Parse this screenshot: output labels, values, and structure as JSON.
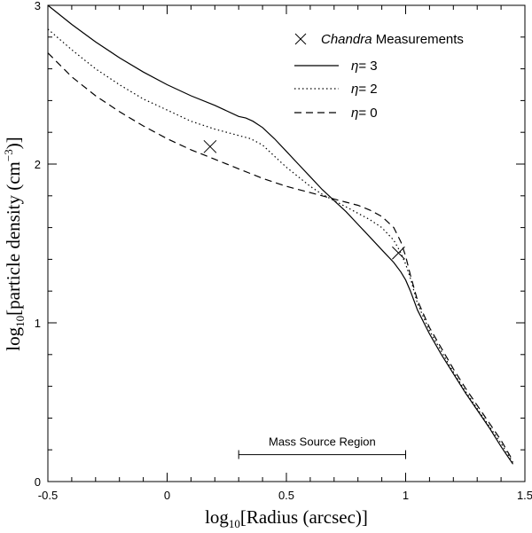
{
  "chart_data": {
    "type": "line",
    "xlabel_prefix": "log",
    "xlabel_sub": "10",
    "xlabel_rest": "[Radius (arcsec)]",
    "ylabel_prefix": "log",
    "ylabel_sub": "10",
    "ylabel_rest": "[particle density (cm",
    "ylabel_sup": "−3",
    "ylabel_end": ")]",
    "xlim": [
      -0.5,
      1.5
    ],
    "ylim": [
      0,
      3
    ],
    "xticks": [
      -0.5,
      0,
      0.5,
      1,
      1.5
    ],
    "xtick_labels": [
      "-0.5",
      "0",
      "0.5",
      "1",
      "1.5"
    ],
    "yticks": [
      0,
      1,
      2,
      3
    ],
    "ytick_labels": [
      "0",
      "1",
      "2",
      "3"
    ],
    "legend": {
      "position": "top-right",
      "measurement_label_italic": "Chandra",
      "measurement_label_rest": " Measurements",
      "eta_symbol": "η",
      "eta_entries": [
        "= 3",
        "= 2",
        "= 0"
      ]
    },
    "measurements": [
      {
        "x": 0.18,
        "y": 2.11
      },
      {
        "x": 0.97,
        "y": 1.44
      }
    ],
    "series": [
      {
        "name": "η= 3",
        "style": "solid",
        "x": [
          -0.5,
          -0.4,
          -0.3,
          -0.2,
          -0.1,
          0.0,
          0.1,
          0.2,
          0.3,
          0.33,
          0.36,
          0.4,
          0.45,
          0.5,
          0.55,
          0.6,
          0.65,
          0.7,
          0.75,
          0.8,
          0.85,
          0.9,
          0.95,
          0.98,
          1.0,
          1.02,
          1.05,
          1.1,
          1.15,
          1.2,
          1.25,
          1.3,
          1.35,
          1.4,
          1.45
        ],
        "y": [
          3.0,
          2.88,
          2.77,
          2.67,
          2.58,
          2.5,
          2.43,
          2.37,
          2.3,
          2.29,
          2.27,
          2.23,
          2.16,
          2.08,
          2.0,
          1.92,
          1.84,
          1.77,
          1.7,
          1.62,
          1.54,
          1.46,
          1.38,
          1.32,
          1.27,
          1.2,
          1.08,
          0.93,
          0.8,
          0.68,
          0.56,
          0.45,
          0.34,
          0.22,
          0.11
        ]
      },
      {
        "name": "η= 2",
        "style": "dotted",
        "x": [
          -0.5,
          -0.4,
          -0.3,
          -0.2,
          -0.1,
          0.0,
          0.1,
          0.2,
          0.3,
          0.35,
          0.4,
          0.45,
          0.5,
          0.55,
          0.6,
          0.65,
          0.7,
          0.75,
          0.8,
          0.85,
          0.9,
          0.95,
          0.98,
          1.0,
          1.02,
          1.05,
          1.1,
          1.15,
          1.2,
          1.25,
          1.3,
          1.35,
          1.4,
          1.45
        ],
        "y": [
          2.85,
          2.72,
          2.6,
          2.5,
          2.41,
          2.34,
          2.27,
          2.22,
          2.18,
          2.16,
          2.12,
          2.05,
          1.98,
          1.92,
          1.86,
          1.81,
          1.77,
          1.73,
          1.69,
          1.65,
          1.6,
          1.52,
          1.44,
          1.37,
          1.28,
          1.12,
          0.95,
          0.82,
          0.69,
          0.57,
          0.46,
          0.35,
          0.24,
          0.12
        ]
      },
      {
        "name": "η= 0",
        "style": "dashed",
        "x": [
          -0.5,
          -0.4,
          -0.3,
          -0.2,
          -0.1,
          0.0,
          0.1,
          0.2,
          0.3,
          0.4,
          0.5,
          0.6,
          0.7,
          0.75,
          0.8,
          0.85,
          0.9,
          0.95,
          0.98,
          1.0,
          1.02,
          1.05,
          1.1,
          1.15,
          1.2,
          1.25,
          1.3,
          1.35,
          1.4,
          1.45
        ],
        "y": [
          2.7,
          2.55,
          2.43,
          2.33,
          2.24,
          2.16,
          2.09,
          2.03,
          1.97,
          1.91,
          1.86,
          1.82,
          1.78,
          1.76,
          1.74,
          1.71,
          1.67,
          1.6,
          1.51,
          1.42,
          1.3,
          1.14,
          0.97,
          0.84,
          0.71,
          0.59,
          0.48,
          0.37,
          0.26,
          0.13
        ]
      }
    ],
    "annotation": {
      "label": "Mass Source Region",
      "x_range": [
        0.3,
        1.0
      ],
      "y": 0.17
    }
  }
}
